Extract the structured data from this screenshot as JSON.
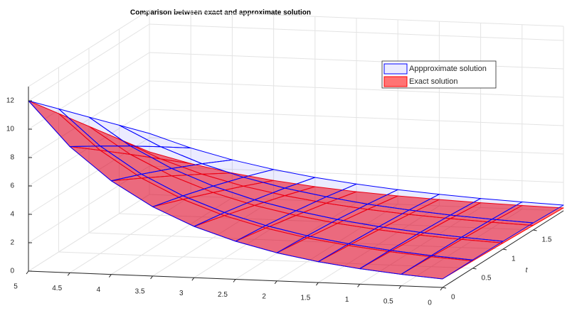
{
  "chart_data": {
    "type": "surface",
    "title": "Comparison between exact and approximate solution",
    "t_label": "t",
    "x": [
      0,
      0.5,
      1,
      1.5,
      2,
      2.5,
      3,
      3.5,
      4,
      4.5,
      5
    ],
    "t": [
      0,
      0.5,
      1,
      1.5,
      2
    ],
    "xlim": [
      0,
      5
    ],
    "tlim": [
      0,
      2
    ],
    "zlim": [
      0,
      13
    ],
    "xticks": [
      0,
      0.5,
      1,
      1.5,
      2,
      2.5,
      3,
      3.5,
      4,
      4.5,
      5
    ],
    "tticks": [
      0,
      0.5,
      1,
      1.5
    ],
    "zticks": [
      0,
      2,
      4,
      6,
      8,
      10,
      12
    ],
    "grid": true,
    "legend": "upper right",
    "series": [
      {
        "name": "Appproximate solution",
        "color": "#0000ff",
        "values": [
          [
            0.6,
            0.81,
            1.09,
            1.47,
            1.98,
            2.68,
            3.61,
            4.88,
            6.59,
            8.89,
            12
          ],
          [
            0.59,
            0.78,
            1.04,
            1.38,
            1.83,
            2.44,
            3.24,
            4.3,
            5.71,
            7.58,
            10.08
          ],
          [
            0.55,
            0.73,
            0.95,
            1.24,
            1.63,
            2.13,
            2.78,
            3.64,
            4.76,
            6.23,
            8.15
          ],
          [
            0.5,
            0.64,
            0.82,
            1.06,
            1.36,
            1.76,
            2.26,
            2.91,
            3.75,
            4.83,
            6.23
          ],
          [
            0.4,
            0.51,
            0.64,
            0.82,
            1.03,
            1.31,
            1.66,
            2.11,
            2.67,
            3.39,
            4.3
          ]
        ]
      },
      {
        "name": "Exact solution",
        "color": "#ff0000",
        "values": [
          [
            0.6,
            0.81,
            1.09,
            1.47,
            1.98,
            2.68,
            3.61,
            4.88,
            6.59,
            8.89,
            12
          ],
          [
            0.52,
            0.7,
            0.94,
            1.26,
            1.68,
            2.26,
            3.02,
            4.05,
            5.43,
            7.28,
            9.75
          ],
          [
            0.43,
            0.57,
            0.76,
            1.02,
            1.35,
            1.8,
            2.39,
            3.18,
            4.24,
            5.64,
            7.5
          ],
          [
            0.32,
            0.43,
            0.57,
            0.75,
            0.99,
            1.31,
            1.73,
            2.28,
            3.01,
            3.97,
            5.25
          ],
          [
            0.2,
            0.26,
            0.34,
            0.45,
            0.59,
            0.77,
            1.01,
            1.33,
            1.74,
            2.29,
            3
          ]
        ]
      }
    ]
  }
}
